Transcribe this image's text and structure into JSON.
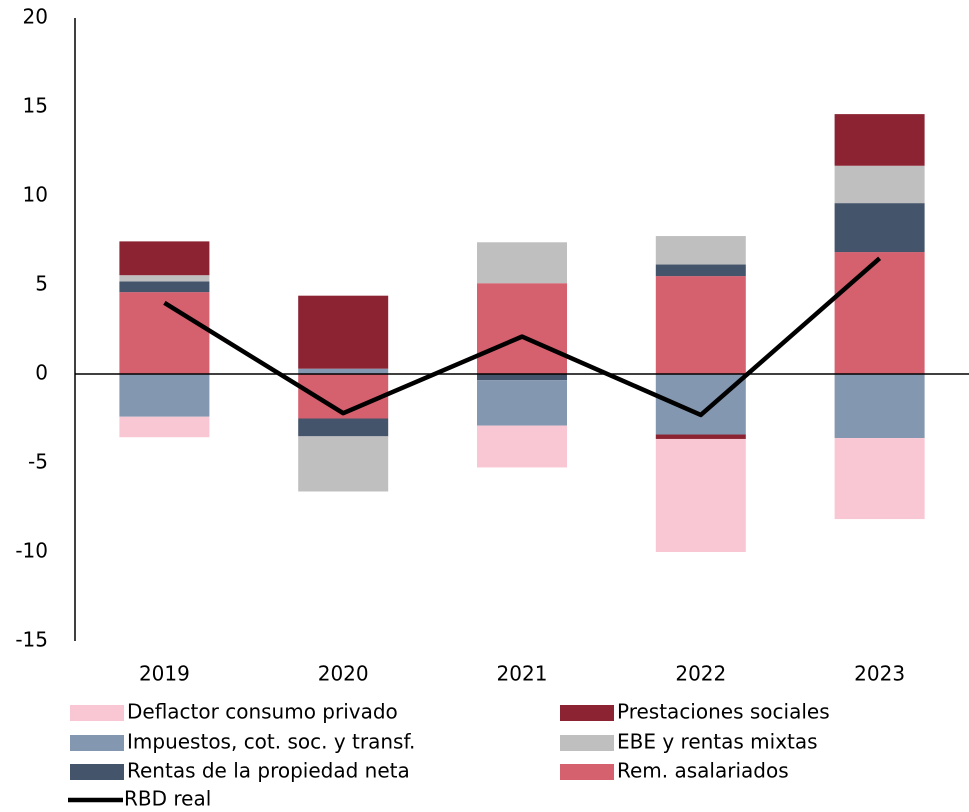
{
  "chart_data": {
    "type": "bar",
    "stacked": true,
    "categories": [
      "2019",
      "2020",
      "2021",
      "2022",
      "2023"
    ],
    "series": [
      {
        "name": "Deflactor consumo privado",
        "color": "#f9c6d3",
        "values": [
          -1.15,
          0,
          -2.35,
          -6.35,
          -4.55
        ]
      },
      {
        "name": "Prestaciones sociales",
        "color": "#8b2332",
        "values": [
          1.9,
          4.1,
          0,
          -0.25,
          2.9
        ]
      },
      {
        "name": "Impuestos, cot. soc. y transf.",
        "color": "#8497b0",
        "values": [
          -2.4,
          0.3,
          -2.55,
          -3.4,
          -3.6
        ]
      },
      {
        "name": "EBE y rentas mixtas",
        "color": "#bfbfbf",
        "values": [
          0.35,
          -3.1,
          2.3,
          1.6,
          2.1
        ]
      },
      {
        "name": "Rentas de la propiedad neta",
        "color": "#44546a",
        "values": [
          0.6,
          -1.0,
          -0.35,
          0.65,
          2.75
        ]
      },
      {
        "name": "Rem. asalariados",
        "color": "#d5606e",
        "values": [
          4.6,
          -2.5,
          5.1,
          5.5,
          6.85
        ]
      }
    ],
    "line": {
      "name": "RBD real",
      "color": "#000000",
      "values": [
        4.0,
        -2.2,
        2.1,
        -2.3,
        6.5
      ]
    },
    "ylim": [
      -15,
      20
    ],
    "yticks": [
      -15,
      -10,
      -5,
      0,
      5,
      10,
      15,
      20
    ]
  }
}
